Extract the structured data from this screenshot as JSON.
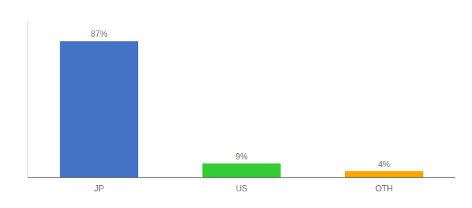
{
  "chart_data": {
    "type": "bar",
    "categories": [
      "JP",
      "US",
      "OTH"
    ],
    "values": [
      87,
      9,
      4
    ],
    "value_labels": [
      "87%",
      "9%",
      "4%"
    ],
    "colors": [
      "#4472C4",
      "#33CC33",
      "#FFA500"
    ],
    "ylim": [
      0,
      100
    ],
    "data_labels": true,
    "tick_labels": "x"
  }
}
